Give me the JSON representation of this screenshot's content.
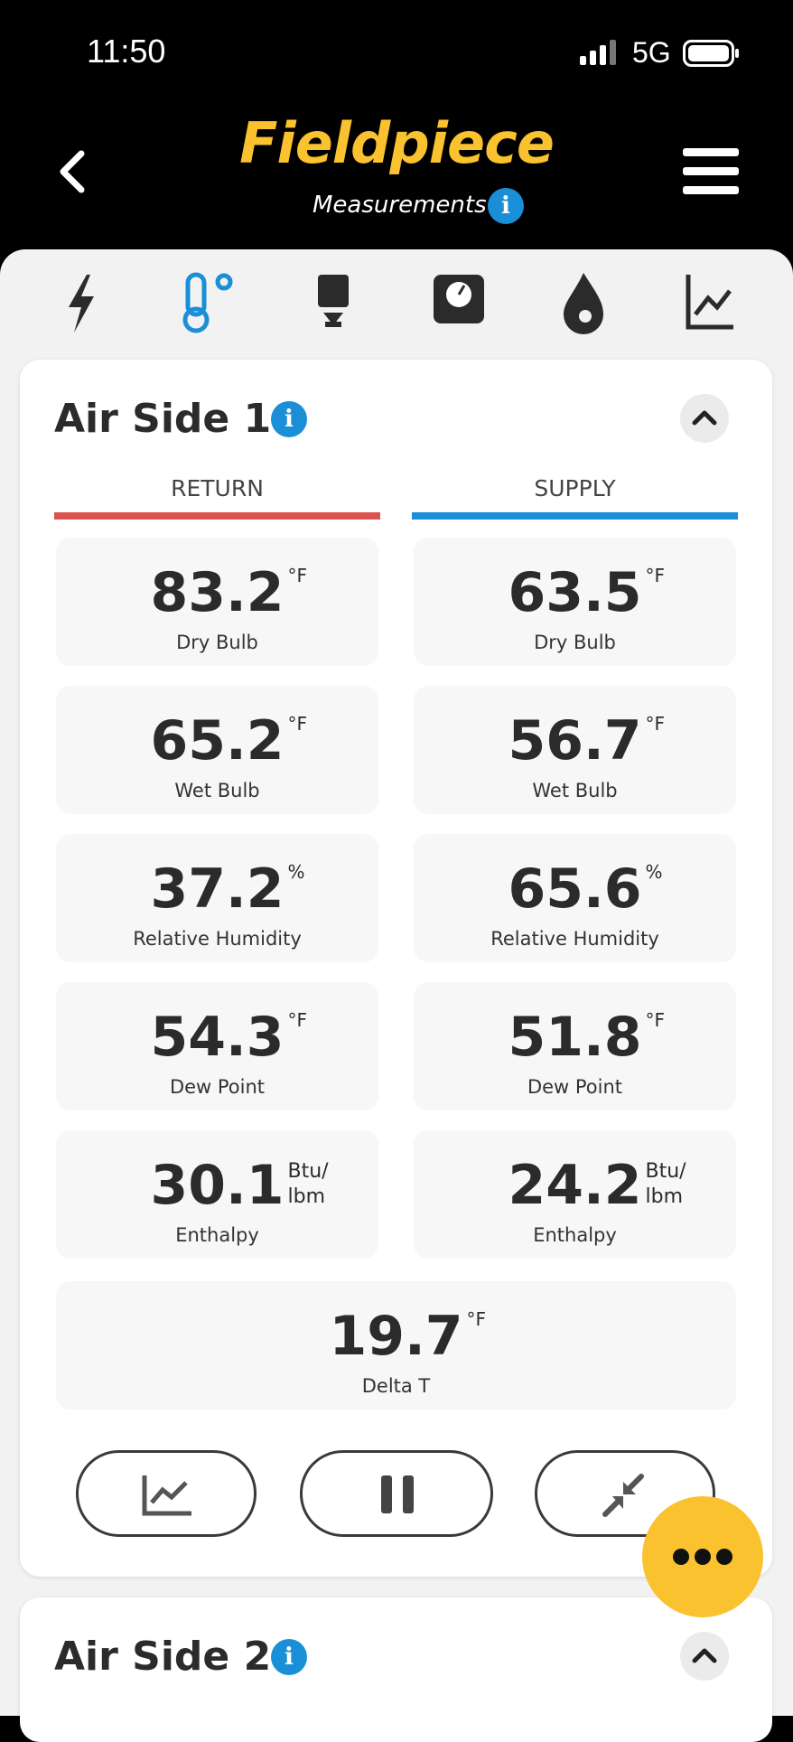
{
  "status_bar": {
    "time": "11:50",
    "network": "5G"
  },
  "header": {
    "brand": "Fieldpiece",
    "subtitle": "Measurements"
  },
  "sections": [
    {
      "title": "Air Side 1",
      "columns": [
        "RETURN",
        "SUPPLY"
      ],
      "rows": [
        [
          {
            "value": "83.2",
            "unit": "°F",
            "label": "Dry Bulb"
          },
          {
            "value": "63.5",
            "unit": "°F",
            "label": "Dry Bulb"
          }
        ],
        [
          {
            "value": "65.2",
            "unit": "°F",
            "label": "Wet Bulb"
          },
          {
            "value": "56.7",
            "unit": "°F",
            "label": "Wet Bulb"
          }
        ],
        [
          {
            "value": "37.2",
            "unit": "%",
            "label": "Relative Humidity"
          },
          {
            "value": "65.6",
            "unit": "%",
            "label": "Relative Humidity"
          }
        ],
        [
          {
            "value": "54.3",
            "unit": "°F",
            "label": "Dew Point"
          },
          {
            "value": "51.8",
            "unit": "°F",
            "label": "Dew Point"
          }
        ],
        [
          {
            "value": "30.1",
            "unit": [
              "Btu/",
              "lbm"
            ],
            "label": "Enthalpy"
          },
          {
            "value": "24.2",
            "unit": [
              "Btu/",
              "lbm"
            ],
            "label": "Enthalpy"
          }
        ]
      ],
      "delta": {
        "value": "19.7",
        "unit": "°F",
        "label": "Delta T"
      }
    },
    {
      "title": "Air Side 2"
    }
  ]
}
